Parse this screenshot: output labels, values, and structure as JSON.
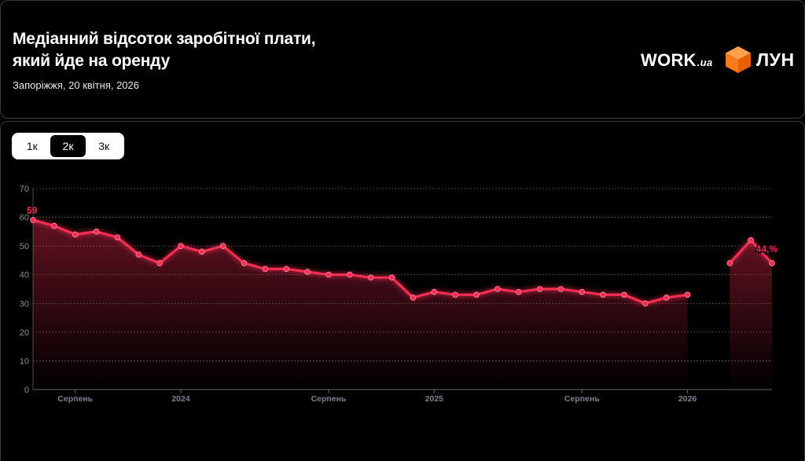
{
  "header": {
    "title": "Медіанний відсоток заробітної плати, який йде на оренду",
    "subtitle": "Запоріжжя, 20 квітня, 2026",
    "logos": {
      "work_main": "WORK",
      "work_suffix": ".ua",
      "lun": "ЛУН",
      "cube_color": "#ff7a1a"
    }
  },
  "toggle": {
    "options": [
      "1к",
      "2к",
      "3к"
    ],
    "selected": "2к"
  },
  "chart_data": {
    "type": "area",
    "title": "",
    "xlabel": "",
    "ylabel": "",
    "ylim": [
      0,
      70
    ],
    "yticks": [
      0,
      10,
      20,
      30,
      40,
      50,
      60,
      70
    ],
    "grid": true,
    "x_ticks": [
      {
        "label": "Серпень",
        "x": "2023-08"
      },
      {
        "label": "2024",
        "x": "2024-01"
      },
      {
        "label": "Серпень",
        "x": "2024-08"
      },
      {
        "label": "2025",
        "x": "2025-01"
      },
      {
        "label": "Серпень",
        "x": "2025-08"
      },
      {
        "label": "2026",
        "x": "2026-01"
      }
    ],
    "series": [
      {
        "color": "#ff2d55",
        "points": [
          {
            "x": "2023-06",
            "y": 59
          },
          {
            "x": "2023-07",
            "y": 57
          },
          {
            "x": "2023-08",
            "y": 54
          },
          {
            "x": "2023-09",
            "y": 55
          },
          {
            "x": "2023-10",
            "y": 53
          },
          {
            "x": "2023-11",
            "y": 47
          },
          {
            "x": "2023-12",
            "y": 44
          },
          {
            "x": "2024-01",
            "y": 50
          },
          {
            "x": "2024-02",
            "y": 48
          },
          {
            "x": "2024-03",
            "y": 50
          },
          {
            "x": "2024-04",
            "y": 44
          },
          {
            "x": "2024-05",
            "y": 42
          },
          {
            "x": "2024-06",
            "y": 42
          },
          {
            "x": "2024-07",
            "y": 41
          },
          {
            "x": "2024-08",
            "y": 40
          },
          {
            "x": "2024-09",
            "y": 40
          },
          {
            "x": "2024-10",
            "y": 39
          },
          {
            "x": "2024-11",
            "y": 39
          },
          {
            "x": "2024-12",
            "y": 32
          },
          {
            "x": "2025-01",
            "y": 34
          },
          {
            "x": "2025-02",
            "y": 33
          },
          {
            "x": "2025-03",
            "y": 33
          },
          {
            "x": "2025-04",
            "y": 35
          },
          {
            "x": "2025-05",
            "y": 34
          },
          {
            "x": "2025-06",
            "y": 35
          },
          {
            "x": "2025-07",
            "y": 35
          },
          {
            "x": "2025-08",
            "y": 34
          },
          {
            "x": "2025-09",
            "y": 33
          },
          {
            "x": "2025-10",
            "y": 33
          },
          {
            "x": "2025-11",
            "y": 30
          },
          {
            "x": "2025-12",
            "y": 32
          },
          {
            "x": "2026-01",
            "y": 33
          },
          {
            "x": "2026-02",
            "y": null
          },
          {
            "x": "2026-03",
            "y": 44
          },
          {
            "x": "2026-04",
            "y": 52
          },
          {
            "x": "2026-05",
            "y": 44
          }
        ]
      }
    ],
    "annotations": {
      "start_label": "59",
      "end_label": "44,%"
    }
  }
}
